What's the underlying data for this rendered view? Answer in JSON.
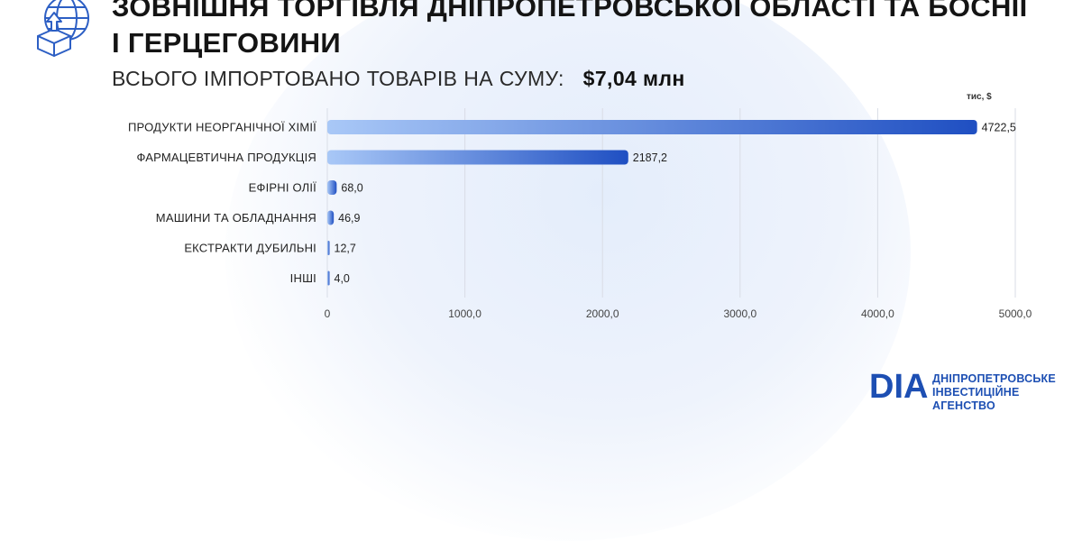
{
  "header": {
    "title_line1": "ЗОВНІШНЯ ТОРГІВЛЯ ДНІПРОПЕТРОВСЬКОЇ ОБЛАСТІ ТА БОСНІЇ",
    "title_line2": "І ГЕРЦЕГОВИНИ",
    "subtitle_label": "ВСЬОГО ІМПОРТОВАНО ТОВАРІВ НА СУМУ:",
    "subtitle_value": "$7,04 млн",
    "icon": "globe-box-upload-icon"
  },
  "chart_data": {
    "type": "bar",
    "orientation": "horizontal",
    "unit": "тис, $",
    "categories": [
      "ПРОДУКТИ НЕОРГАНІЧНОЇ ХІМІЇ",
      "ФАРМАЦЕВТИЧНА ПРОДУКЦІЯ",
      "ЕФІРНІ ОЛІЇ",
      "МАШИНИ ТА ОБЛАДНАННЯ",
      "ЕКСТРАКТИ ДУБИЛЬНІ",
      "ІНШІ"
    ],
    "values": [
      4722.5,
      2187.2,
      68.0,
      46.9,
      12.7,
      4.0
    ],
    "value_labels": [
      "4722,5",
      "2187,2",
      "68,0",
      "46,9",
      "12,7",
      "4,0"
    ],
    "xlim": [
      0,
      5000
    ],
    "xticks": [
      0,
      1000,
      2000,
      3000,
      4000,
      5000
    ],
    "xtick_labels": [
      "0",
      "1000,0",
      "2000,0",
      "3000,0",
      "4000,0",
      "5000,0"
    ],
    "grid": "vertical",
    "colors": {
      "bar_start": "#a9c8f7",
      "bar_end": "#1f4fc2",
      "grid": "#d9dde6"
    }
  },
  "logo": {
    "mark": "DIA",
    "line1": "ДНІПРОПЕТРОВСЬКЕ",
    "line2": "ІНВЕСТИЦІЙНЕ АГЕНСТВО",
    "color": "#1d4fb3"
  }
}
